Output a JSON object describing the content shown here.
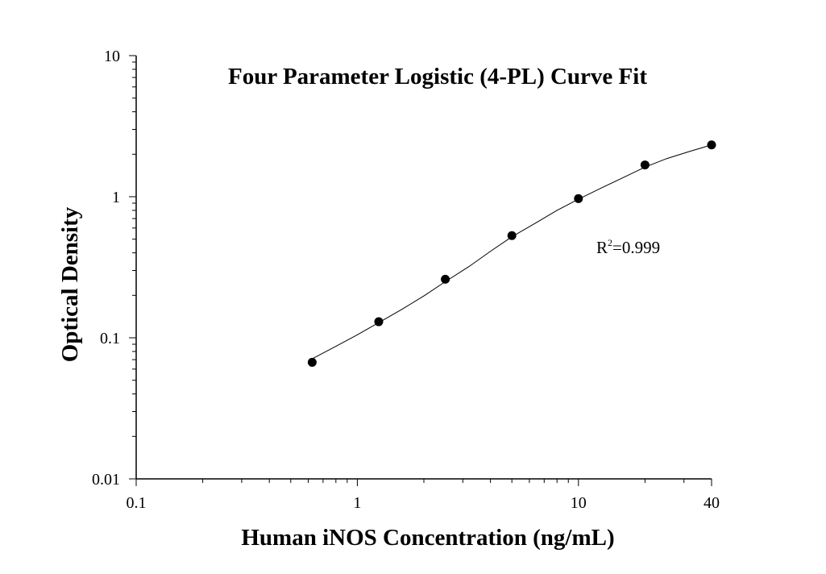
{
  "chart_data": {
    "type": "scatter",
    "title": "Four Parameter Logistic (4-PL) Curve Fit",
    "xlabel": "Human iNOS Concentration (ng/mL)",
    "ylabel": "Optical Density",
    "xscale": "log",
    "yscale": "log",
    "xlim": [
      0.1,
      40
    ],
    "ylim": [
      0.01,
      10
    ],
    "xticks": [
      "0.1",
      "1",
      "10",
      "40"
    ],
    "yticks": [
      "0.01",
      "0.1",
      "1",
      "10"
    ],
    "grid": false,
    "series": [
      {
        "type": "scatter",
        "x": [
          0.625,
          1.25,
          2.5,
          5,
          10,
          20,
          40
        ],
        "y": [
          0.067,
          0.13,
          0.26,
          0.53,
          0.97,
          1.68,
          2.33
        ],
        "color": "#000000"
      },
      {
        "type": "line",
        "fit": "4PL",
        "x": [
          0.625,
          0.8,
          1,
          1.25,
          1.6,
          2,
          2.5,
          3.2,
          4,
          5,
          6.4,
          8,
          10,
          12.8,
          16,
          20,
          25,
          32,
          40
        ],
        "y": [
          0.071,
          0.087,
          0.105,
          0.128,
          0.16,
          0.198,
          0.25,
          0.32,
          0.41,
          0.52,
          0.65,
          0.8,
          0.96,
          1.16,
          1.37,
          1.62,
          1.86,
          2.1,
          2.33
        ],
        "color": "#000000"
      }
    ],
    "annotations": [
      {
        "text_base": "R",
        "text_sup": "2",
        "text_rest": "=0.999"
      }
    ]
  }
}
